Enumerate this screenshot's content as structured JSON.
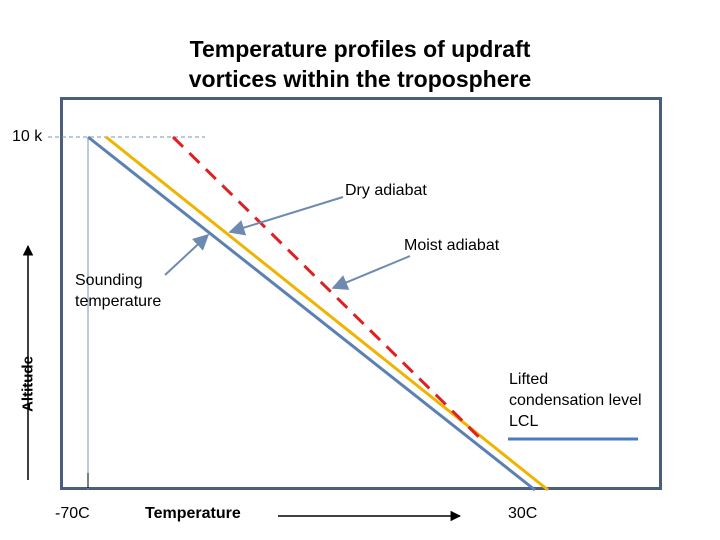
{
  "title": {
    "line1": "Temperature profiles of updraft",
    "line2": "vortices within the troposphere"
  },
  "labels": {
    "top_altitude": "10 k",
    "dry_adiabat": "Dry adiabat",
    "moist_adiabat": "Moist adiabat",
    "sounding_line1": "Sounding",
    "sounding_line2": "temperature",
    "lcl_line1": "Lifted",
    "lcl_line2": "condensation level",
    "lcl_line3": "LCL",
    "y_axis": "Altitude",
    "x_axis": "Temperature",
    "x_min": "-70C",
    "x_max": "30C"
  },
  "colors": {
    "frame": "#4a5f7d",
    "sounding": "#5b80b4",
    "moist_adiabat": "#f0b400",
    "dry_adiabat": "#e02020",
    "arrow": "#6f8ab0",
    "lcl_marker": "#4a7bc0",
    "guide": "#7b93b8"
  }
}
